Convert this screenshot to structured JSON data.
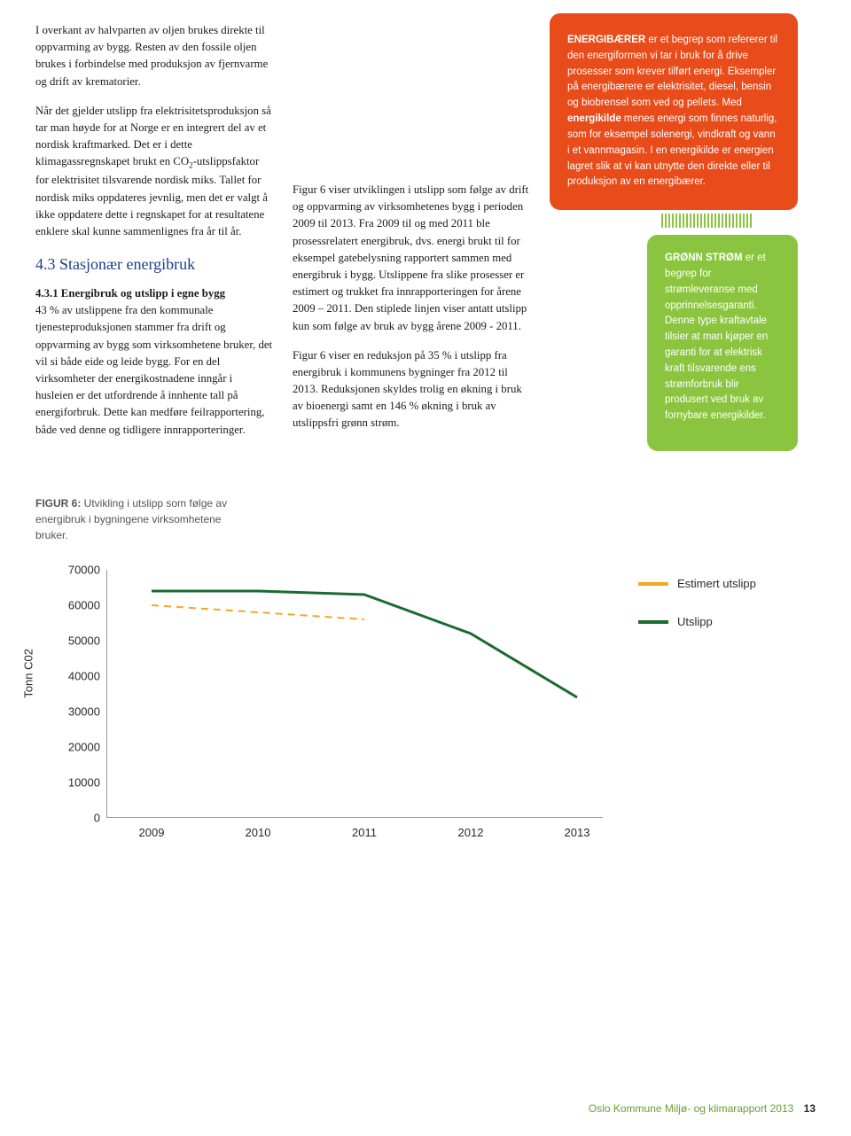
{
  "left": {
    "p1": "I overkant av halvparten av oljen brukes direkte til oppvarming av bygg. Resten av den fossile oljen brukes i forbindelse med produksjon av fjernvarme og drift av krematorier.",
    "p2a": "Når det gjelder utslipp fra elektrisitetsproduksjon så tar man høyde for at Norge er en integrert del av et nordisk kraftmarked. Det er i dette klimagassregnskapet brukt en CO",
    "p2sub": "2",
    "p2b": "-utslippsfaktor for elektrisitet tilsvarende nordisk miks. Tallet for nordisk miks oppdateres jevnlig, men det er valgt å ikke oppdatere dette i regnskapet for at resultatene enklere skal kunne sammenlignes fra år til år.",
    "section": "4.3 Stasjonær energibruk",
    "subhead": "4.3.1 Energibruk og utslipp i egne bygg",
    "p3": "43 % av utslippene fra den kommunale tjenesteproduksjonen stammer fra drift og oppvarming av bygg som virksomhetene bruker, det vil si både eide og leide bygg. For en del virksomheter der energikostnadene inngår i husleien er det utfordrende å innhente tall på energiforbruk. Dette kan medføre feilrapportering, både ved denne og tidligere innrapporteringer."
  },
  "mid": {
    "p1": "Figur 6 viser utviklingen i utslipp som følge av drift og oppvarming av virksomhetenes bygg i perioden 2009 til 2013. Fra 2009 til og med 2011 ble prosessrelatert energibruk, dvs. energi brukt til for eksempel gatebelysning rapportert sammen med energibruk i bygg. Utslippene fra slike prosesser er estimert og trukket fra innrapporteringen for årene 2009 – 2011. Den stiplede linjen viser antatt utslipp kun som følge av bruk av bygg årene 2009 - 2011.",
    "p2": "Figur 6 viser en reduksjon på 35 % i utslipp fra energibruk i kommunens bygninger fra 2012 til 2013. Reduksjonen skyldes trolig en økning i bruk av bioenergi samt en 146 % økning i bruk av utslippsfri grønn strøm."
  },
  "redbox": {
    "lead": "ENERGIBÆRER",
    "text1": " er et begrep som refererer til den energiformen vi tar i bruk for å drive prosesser som krever tilført energi. Eksempler på energibærere er elektrisitet, diesel, bensin og biobrensel som ved og pellets. Med ",
    "lead2": "energikilde",
    "text2": " menes energi som finnes naturlig, som for eksempel solenergi, vindkraft og vann i et vannmagasin. I en energikilde er energien lagret slik at vi kan utnytte den direkte eller til produksjon av en energibærer."
  },
  "greenbox": {
    "lead": "GRØNN STRØM",
    "text": " er et begrep for strømleveranse med opprinnelsesgaranti. Denne type kraftavtale tilsier at man kjøper en garanti for at elektrisk kraft tilsvarende ens strømforbruk blir produsert ved bruk av fornybare energikilder."
  },
  "figcaption": {
    "lead": "FIGUR 6:",
    "text": " Utvikling i utslipp som følge av energibruk i bygningene virksomhetene bruker."
  },
  "chart": {
    "type": "line",
    "ylabel": "Tonn C02",
    "ylim": [
      0,
      70000
    ],
    "ytick_step": 10000,
    "yticks": [
      "0",
      "10000",
      "20000",
      "30000",
      "40000",
      "50000",
      "60000",
      "70000"
    ],
    "xticks": [
      "2009",
      "2010",
      "2011",
      "2012",
      "2013"
    ],
    "series": [
      {
        "name": "Estimert utslipp",
        "color": "#f5a623",
        "dashed": true,
        "width": 2,
        "points": [
          [
            0,
            60000
          ],
          [
            1,
            58000
          ],
          [
            2,
            56000
          ]
        ]
      },
      {
        "name": "Utslipp",
        "color": "#1a6b2f",
        "dashed": false,
        "width": 3,
        "points": [
          [
            0,
            64000
          ],
          [
            1,
            64000
          ],
          [
            2,
            63000
          ],
          [
            3,
            52000
          ],
          [
            4,
            34000
          ]
        ]
      }
    ],
    "legend": [
      {
        "label": "Estimert utslipp",
        "color": "#f5a623"
      },
      {
        "label": "Utslipp",
        "color": "#1a6b2f"
      }
    ],
    "grid_color": "#999999",
    "background": "#ffffff"
  },
  "footer": {
    "text": "Oslo Kommune Miljø- og klimarapport 2013",
    "page": "13"
  }
}
